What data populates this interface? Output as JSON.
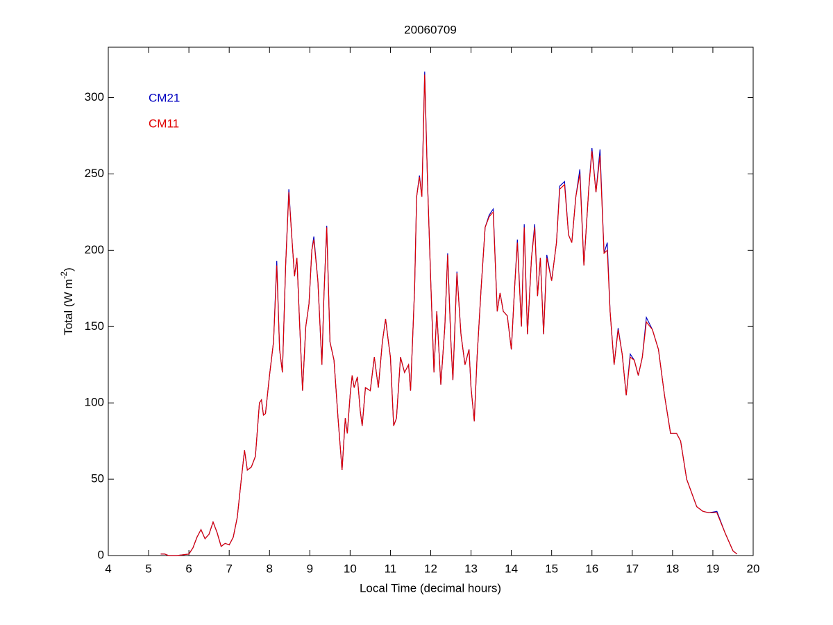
{
  "chart_data": {
    "type": "line",
    "title": "20060709",
    "xlabel": "Local Time (decimal hours)",
    "ylabel": {
      "text": "Total (W m",
      "superscript": "-2",
      "suffix": ")"
    },
    "legend": "upper left",
    "xlim": [
      4,
      20
    ],
    "xticks": [
      4,
      5,
      6,
      7,
      8,
      9,
      10,
      11,
      12,
      13,
      14,
      15,
      16,
      17,
      18,
      19,
      20
    ],
    "ylim": [
      0,
      333
    ],
    "yticks": [
      0,
      50,
      100,
      150,
      200,
      250,
      300
    ],
    "x": [
      5.3,
      5.4,
      5.5,
      5.7,
      6.0,
      6.1,
      6.2,
      6.3,
      6.4,
      6.5,
      6.6,
      6.7,
      6.8,
      6.9,
      7.0,
      7.1,
      7.2,
      7.3,
      7.38,
      7.45,
      7.55,
      7.65,
      7.75,
      7.8,
      7.85,
      7.9,
      8.0,
      8.1,
      8.18,
      8.25,
      8.32,
      8.4,
      8.48,
      8.55,
      8.62,
      8.68,
      8.75,
      8.82,
      8.9,
      8.98,
      9.05,
      9.1,
      9.2,
      9.3,
      9.35,
      9.42,
      9.5,
      9.6,
      9.7,
      9.8,
      9.88,
      9.93,
      10.0,
      10.05,
      10.1,
      10.18,
      10.25,
      10.3,
      10.38,
      10.5,
      10.6,
      10.7,
      10.8,
      10.88,
      10.95,
      11.0,
      11.08,
      11.15,
      11.25,
      11.35,
      11.45,
      11.5,
      11.6,
      11.65,
      11.72,
      11.78,
      11.85,
      11.92,
      12.0,
      12.08,
      12.15,
      12.25,
      12.35,
      12.42,
      12.5,
      12.55,
      12.65,
      12.75,
      12.85,
      12.95,
      13.0,
      13.08,
      13.15,
      13.25,
      13.35,
      13.45,
      13.55,
      13.65,
      13.72,
      13.8,
      13.9,
      14.0,
      14.08,
      14.15,
      14.25,
      14.32,
      14.4,
      14.5,
      14.58,
      14.65,
      14.72,
      14.8,
      14.88,
      15.0,
      15.12,
      15.2,
      15.32,
      15.42,
      15.5,
      15.6,
      15.7,
      15.8,
      15.92,
      16.0,
      16.1,
      16.2,
      16.3,
      16.38,
      16.45,
      16.55,
      16.65,
      16.75,
      16.85,
      16.95,
      17.05,
      17.15,
      17.25,
      17.35,
      17.5,
      17.65,
      17.8,
      17.95,
      18.1,
      18.2,
      18.35,
      18.6,
      18.75,
      18.9,
      19.1,
      19.3,
      19.5,
      19.6
    ],
    "series": [
      {
        "name": "CM21",
        "color": "#0000c0",
        "values": [
          1,
          1,
          0,
          0,
          1,
          5,
          12,
          17,
          11,
          14,
          22,
          15,
          6,
          8,
          7,
          12,
          25,
          50,
          69,
          56,
          58,
          65,
          100,
          102,
          92,
          93,
          118,
          140,
          193,
          135,
          120,
          190,
          240,
          210,
          183,
          195,
          150,
          108,
          150,
          165,
          200,
          209,
          180,
          125,
          170,
          216,
          140,
          128,
          90,
          56,
          90,
          80,
          105,
          118,
          110,
          117,
          95,
          85,
          110,
          108,
          130,
          110,
          140,
          155,
          140,
          130,
          85,
          90,
          130,
          120,
          125,
          108,
          175,
          235,
          249,
          235,
          317,
          245,
          180,
          120,
          160,
          112,
          150,
          198,
          140,
          115,
          186,
          145,
          125,
          135,
          110,
          88,
          130,
          175,
          215,
          223,
          227,
          160,
          172,
          160,
          157,
          135,
          175,
          207,
          150,
          217,
          145,
          195,
          217,
          170,
          195,
          145,
          197,
          180,
          205,
          242,
          245,
          210,
          205,
          235,
          253,
          190,
          240,
          267,
          238,
          266,
          198,
          205,
          160,
          125,
          149,
          132,
          105,
          132,
          128,
          118,
          130,
          156,
          148,
          135,
          105,
          80,
          80,
          75,
          50,
          32,
          29,
          28,
          29,
          15,
          3,
          1
        ]
      },
      {
        "name": "CM11",
        "color": "#e00000",
        "values": [
          1,
          1,
          0,
          0,
          1,
          5,
          12,
          17,
          11,
          14,
          22,
          15,
          6,
          8,
          7,
          12,
          25,
          50,
          69,
          56,
          58,
          65,
          100,
          102,
          92,
          93,
          118,
          140,
          190,
          135,
          120,
          190,
          238,
          210,
          183,
          195,
          150,
          108,
          150,
          165,
          200,
          207,
          180,
          125,
          170,
          215,
          140,
          128,
          90,
          56,
          90,
          80,
          105,
          118,
          110,
          117,
          95,
          85,
          110,
          108,
          130,
          110,
          140,
          155,
          140,
          130,
          85,
          90,
          130,
          120,
          125,
          108,
          175,
          235,
          248,
          235,
          315,
          245,
          180,
          120,
          160,
          112,
          150,
          197,
          140,
          115,
          185,
          145,
          125,
          135,
          110,
          88,
          130,
          175,
          215,
          222,
          225,
          160,
          172,
          160,
          157,
          135,
          175,
          205,
          150,
          215,
          145,
          195,
          215,
          170,
          195,
          145,
          195,
          180,
          205,
          240,
          243,
          210,
          205,
          235,
          250,
          190,
          240,
          265,
          238,
          262,
          198,
          200,
          160,
          125,
          148,
          132,
          105,
          130,
          128,
          118,
          130,
          153,
          148,
          135,
          105,
          80,
          80,
          75,
          50,
          32,
          29,
          28,
          28,
          15,
          3,
          1
        ]
      }
    ]
  }
}
